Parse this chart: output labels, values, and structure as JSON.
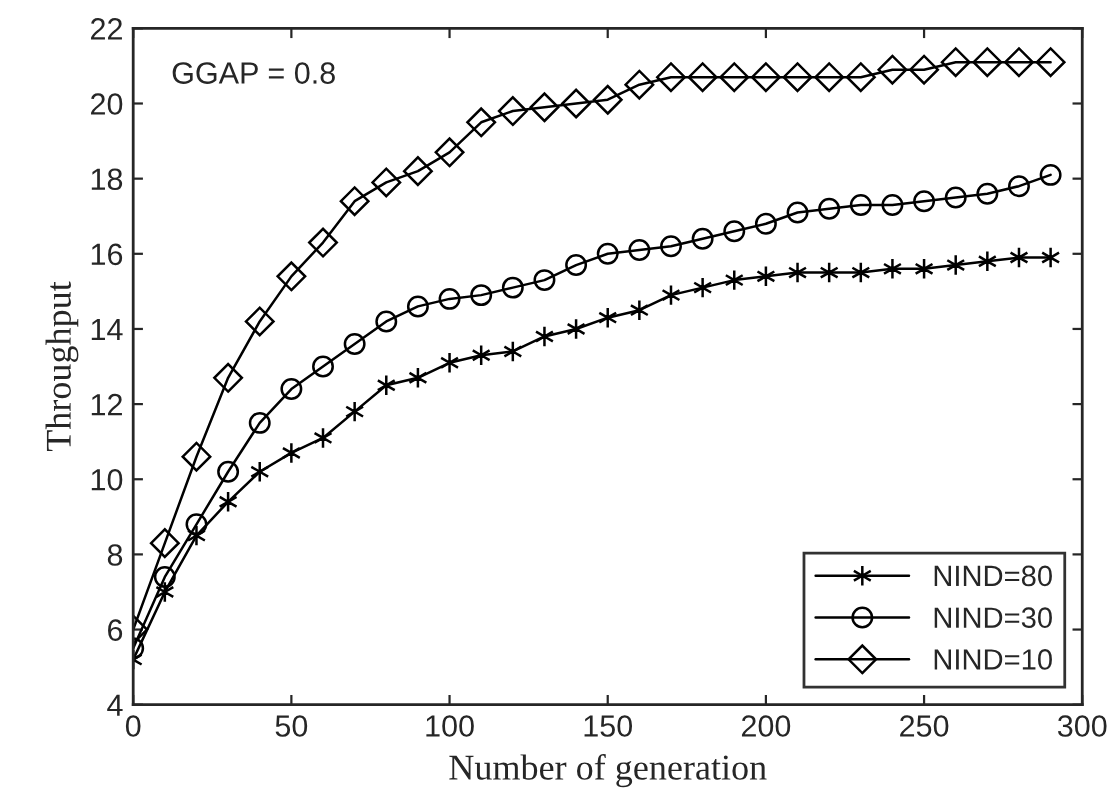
{
  "chart_data": {
    "type": "line",
    "xlabel": "Number of generation",
    "ylabel": "Throughput",
    "annotations": [
      "GGAP = 0.8"
    ],
    "x": [
      0,
      10,
      20,
      30,
      40,
      50,
      60,
      70,
      80,
      90,
      100,
      110,
      120,
      130,
      140,
      150,
      160,
      170,
      180,
      190,
      200,
      210,
      220,
      230,
      240,
      250,
      260,
      270,
      280,
      290
    ],
    "series": [
      {
        "name": "NIND=80",
        "color": "#000000",
        "marker": "cross",
        "values": [
          5.2,
          7.0,
          8.5,
          9.4,
          10.2,
          10.7,
          11.1,
          11.8,
          12.5,
          12.7,
          13.1,
          13.3,
          13.4,
          13.8,
          14.0,
          14.3,
          14.5,
          14.9,
          15.1,
          15.3,
          15.4,
          15.5,
          15.5,
          15.5,
          15.6,
          15.6,
          15.7,
          15.8,
          15.9,
          15.9
        ]
      },
      {
        "name": "NIND=30",
        "color": "#000000",
        "marker": "circle",
        "values": [
          5.5,
          7.4,
          8.8,
          10.2,
          11.5,
          12.4,
          13.0,
          13.6,
          14.2,
          14.6,
          14.8,
          14.9,
          15.1,
          15.3,
          15.7,
          16.0,
          16.1,
          16.2,
          16.4,
          16.6,
          16.8,
          17.1,
          17.2,
          17.3,
          17.3,
          17.4,
          17.5,
          17.6,
          17.8,
          18.1
        ]
      },
      {
        "name": "NIND=10",
        "color": "#000000",
        "marker": "diamond",
        "values": [
          6.0,
          8.3,
          10.6,
          12.7,
          14.2,
          15.4,
          16.3,
          17.4,
          17.9,
          18.2,
          18.7,
          19.5,
          19.8,
          19.9,
          20.0,
          20.1,
          20.5,
          20.7,
          20.7,
          20.7,
          20.7,
          20.7,
          20.7,
          20.7,
          20.9,
          20.9,
          21.1,
          21.1,
          21.1,
          21.1
        ]
      }
    ],
    "xlim": [
      0,
      300
    ],
    "xticks": [
      0,
      50,
      100,
      150,
      200,
      250,
      300
    ],
    "ylim": [
      4,
      22
    ],
    "yticks": [
      4,
      6,
      8,
      10,
      12,
      14,
      16,
      18,
      20,
      22
    ],
    "grid": false,
    "legend": "bottom right",
    "line_style": "solid"
  }
}
